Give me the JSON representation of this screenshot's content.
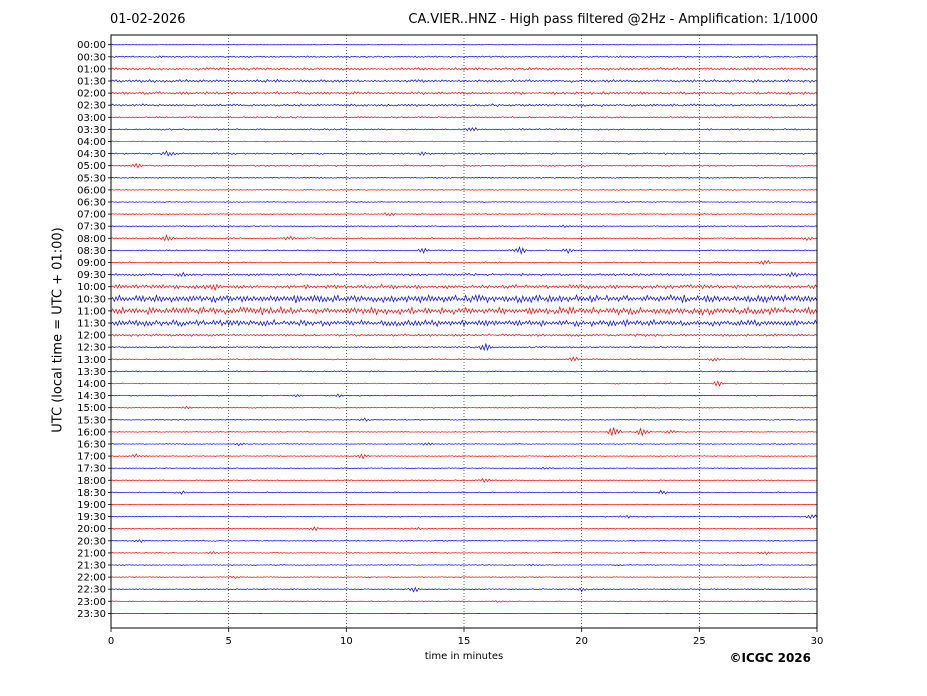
{
  "header": {
    "date": "01-02-2026",
    "title": "CA.VIER..HNZ - High pass filtered @2Hz - Amplification: 1/1000"
  },
  "footer": {
    "copyright": "©ICGC 2026"
  },
  "colors": {
    "odd_trace": "#ff0000",
    "even_trace": "#0000ff",
    "grid": "#000000",
    "axes": "#000000"
  },
  "chart_data": {
    "type": "line",
    "title": "CA.VIER..HNZ - High pass filtered @2Hz - Amplification: 1/1000",
    "xlabel": "time in minutes",
    "ylabel": "UTC (local time = UTC + 01:00)",
    "xlim": [
      0,
      30
    ],
    "x_ticks": [
      0,
      5,
      10,
      15,
      20,
      25,
      30
    ],
    "grid": "vertical dotted",
    "trace_colors": [
      "#0000ff",
      "#ff0000"
    ],
    "rows": [
      {
        "label": "00:00",
        "color": "#0000ff",
        "noise": 0.2,
        "events": []
      },
      {
        "label": "00:30",
        "color": "#0000ff",
        "noise": 0.8,
        "events": []
      },
      {
        "label": "01:00",
        "color": "#ff0000",
        "noise": 1.2,
        "events": []
      },
      {
        "label": "01:30",
        "color": "#0000ff",
        "noise": 1.3,
        "events": []
      },
      {
        "label": "02:00",
        "color": "#ff0000",
        "noise": 1.3,
        "events": []
      },
      {
        "label": "02:30",
        "color": "#0000ff",
        "noise": 1.2,
        "events": []
      },
      {
        "label": "03:00",
        "color": "#ff0000",
        "noise": 0.8,
        "events": []
      },
      {
        "label": "03:30",
        "color": "#0000ff",
        "noise": 0.8,
        "events": [
          {
            "x": 15.3,
            "amp": 2.0
          }
        ]
      },
      {
        "label": "04:00",
        "color": "#ff0000",
        "noise": 0.6,
        "events": []
      },
      {
        "label": "04:30",
        "color": "#0000ff",
        "noise": 0.8,
        "events": [
          {
            "x": 2.4,
            "amp": 2.0
          },
          {
            "x": 13.3,
            "amp": 1.8
          }
        ]
      },
      {
        "label": "05:00",
        "color": "#ff0000",
        "noise": 0.7,
        "events": [
          {
            "x": 1.1,
            "amp": 2.0
          }
        ]
      },
      {
        "label": "05:30",
        "color": "#0000ff",
        "noise": 0.6,
        "events": []
      },
      {
        "label": "06:00",
        "color": "#ff0000",
        "noise": 0.5,
        "events": []
      },
      {
        "label": "06:30",
        "color": "#0000ff",
        "noise": 0.5,
        "events": []
      },
      {
        "label": "07:00",
        "color": "#ff0000",
        "noise": 0.6,
        "events": [
          {
            "x": 11.8,
            "amp": 1.5
          }
        ]
      },
      {
        "label": "07:30",
        "color": "#0000ff",
        "noise": 0.5,
        "events": [
          {
            "x": 19.3,
            "amp": 1.5
          }
        ]
      },
      {
        "label": "08:00",
        "color": "#ff0000",
        "noise": 0.6,
        "events": [
          {
            "x": 2.4,
            "amp": 3.0
          },
          {
            "x": 7.6,
            "amp": 2.0
          },
          {
            "x": 29.6,
            "amp": 2.0
          }
        ]
      },
      {
        "label": "08:30",
        "color": "#0000ff",
        "noise": 0.6,
        "events": [
          {
            "x": 13.3,
            "amp": 3.0
          },
          {
            "x": 17.4,
            "amp": 3.5
          },
          {
            "x": 19.4,
            "amp": 2.5
          }
        ]
      },
      {
        "label": "09:00",
        "color": "#ff0000",
        "noise": 0.6,
        "events": [
          {
            "x": 27.8,
            "amp": 2.5
          }
        ]
      },
      {
        "label": "09:30",
        "color": "#0000ff",
        "noise": 1.2,
        "events": [
          {
            "x": 3.0,
            "amp": 2.0
          },
          {
            "x": 29.0,
            "amp": 3.0
          }
        ]
      },
      {
        "label": "10:00",
        "color": "#ff0000",
        "noise": 2.0,
        "events": [
          {
            "x": 4.3,
            "amp": 3.0
          }
        ]
      },
      {
        "label": "10:30",
        "color": "#0000ff",
        "noise": 3.5,
        "events": []
      },
      {
        "label": "11:00",
        "color": "#ff0000",
        "noise": 3.5,
        "events": []
      },
      {
        "label": "11:30",
        "color": "#0000ff",
        "noise": 3.0,
        "events": []
      },
      {
        "label": "12:00",
        "color": "#ff0000",
        "noise": 1.2,
        "events": []
      },
      {
        "label": "12:30",
        "color": "#0000ff",
        "noise": 0.8,
        "events": [
          {
            "x": 15.9,
            "amp": 4.0
          }
        ]
      },
      {
        "label": "13:00",
        "color": "#ff0000",
        "noise": 0.6,
        "events": [
          {
            "x": 19.7,
            "amp": 2.5
          },
          {
            "x": 25.6,
            "amp": 2.0
          }
        ]
      },
      {
        "label": "13:30",
        "color": "#0000ff",
        "noise": 0.6,
        "events": []
      },
      {
        "label": "14:00",
        "color": "#ff0000",
        "noise": 0.5,
        "events": [
          {
            "x": 25.8,
            "amp": 2.5
          }
        ]
      },
      {
        "label": "14:30",
        "color": "#0000ff",
        "noise": 0.5,
        "events": [
          {
            "x": 7.9,
            "amp": 1.5
          },
          {
            "x": 9.7,
            "amp": 2.0
          }
        ]
      },
      {
        "label": "15:00",
        "color": "#ff0000",
        "noise": 0.5,
        "events": [
          {
            "x": 3.2,
            "amp": 1.5
          }
        ]
      },
      {
        "label": "15:30",
        "color": "#0000ff",
        "noise": 0.5,
        "events": [
          {
            "x": 10.8,
            "amp": 1.5
          }
        ]
      },
      {
        "label": "16:00",
        "color": "#ff0000",
        "noise": 0.5,
        "events": [
          {
            "x": 21.4,
            "amp": 6.0
          },
          {
            "x": 22.6,
            "amp": 5.0
          },
          {
            "x": 23.8,
            "amp": 2.0
          }
        ]
      },
      {
        "label": "16:30",
        "color": "#0000ff",
        "noise": 0.5,
        "events": [
          {
            "x": 5.5,
            "amp": 1.5
          },
          {
            "x": 13.5,
            "amp": 1.8
          }
        ]
      },
      {
        "label": "17:00",
        "color": "#ff0000",
        "noise": 0.5,
        "events": [
          {
            "x": 1.1,
            "amp": 2.0
          },
          {
            "x": 10.7,
            "amp": 2.0
          }
        ]
      },
      {
        "label": "17:30",
        "color": "#0000ff",
        "noise": 0.4,
        "events": [
          {
            "x": 18.5,
            "amp": 1.2
          }
        ]
      },
      {
        "label": "18:00",
        "color": "#ff0000",
        "noise": 0.5,
        "events": [
          {
            "x": 15.9,
            "amp": 2.0
          }
        ]
      },
      {
        "label": "18:30",
        "color": "#0000ff",
        "noise": 0.5,
        "events": [
          {
            "x": 3.0,
            "amp": 1.5
          },
          {
            "x": 23.4,
            "amp": 2.0
          }
        ]
      },
      {
        "label": "19:00",
        "color": "#ff0000",
        "noise": 0.4,
        "events": []
      },
      {
        "label": "19:30",
        "color": "#0000ff",
        "noise": 0.5,
        "events": [
          {
            "x": 21.9,
            "amp": 1.5
          },
          {
            "x": 29.8,
            "amp": 2.5
          }
        ]
      },
      {
        "label": "20:00",
        "color": "#ff0000",
        "noise": 0.5,
        "events": [
          {
            "x": 8.6,
            "amp": 1.8
          },
          {
            "x": 13.0,
            "amp": 1.5
          }
        ]
      },
      {
        "label": "20:30",
        "color": "#0000ff",
        "noise": 0.5,
        "events": [
          {
            "x": 1.2,
            "amp": 1.5
          }
        ]
      },
      {
        "label": "21:00",
        "color": "#ff0000",
        "noise": 0.5,
        "events": [
          {
            "x": 4.3,
            "amp": 1.5
          },
          {
            "x": 27.8,
            "amp": 1.5
          }
        ]
      },
      {
        "label": "21:30",
        "color": "#0000ff",
        "noise": 0.5,
        "events": [
          {
            "x": 17.9,
            "amp": 1.5
          }
        ]
      },
      {
        "label": "22:00",
        "color": "#ff0000",
        "noise": 0.5,
        "events": [
          {
            "x": 5.2,
            "amp": 1.5
          }
        ]
      },
      {
        "label": "22:30",
        "color": "#0000ff",
        "noise": 0.6,
        "events": [
          {
            "x": 12.9,
            "amp": 2.5
          },
          {
            "x": 20.0,
            "amp": 2.0
          }
        ]
      },
      {
        "label": "23:00",
        "color": "#ff0000",
        "noise": 0.4,
        "events": [
          {
            "x": 16.6,
            "amp": 1.2
          }
        ]
      },
      {
        "label": "23:30",
        "color": "#0000ff",
        "noise": 0.2,
        "events": []
      }
    ]
  }
}
